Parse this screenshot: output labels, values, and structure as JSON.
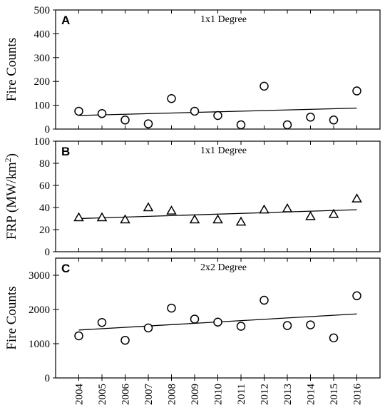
{
  "chart_data": [
    {
      "type": "scatter",
      "letter": "A",
      "title": "1x1 Degree",
      "ylabel": "Fire Counts",
      "ylim": [
        0,
        500
      ],
      "yticks": [
        0,
        100,
        200,
        300,
        400,
        500
      ],
      "marker": "circle",
      "x": [
        2004,
        2005,
        2006,
        2007,
        2008,
        2009,
        2010,
        2011,
        2012,
        2013,
        2014,
        2015,
        2016
      ],
      "values": [
        75,
        65,
        38,
        22,
        128,
        75,
        57,
        18,
        180,
        18,
        50,
        38,
        160
      ],
      "trend": {
        "x": [
          2004,
          2016
        ],
        "y": [
          57,
          88
        ]
      }
    },
    {
      "type": "scatter",
      "letter": "B",
      "title": "1x1 Degree",
      "ylabel": "FRP (MW/km",
      "ylabel_sup": "2",
      "ylabel_end": ")",
      "ylim": [
        0,
        100
      ],
      "yticks": [
        0,
        20,
        40,
        60,
        80,
        100
      ],
      "marker": "triangle",
      "x": [
        2004,
        2005,
        2006,
        2007,
        2008,
        2009,
        2010,
        2011,
        2012,
        2013,
        2014,
        2015,
        2016
      ],
      "values": [
        31,
        31,
        29,
        40,
        37,
        29,
        29,
        27,
        38,
        39,
        32,
        34,
        48
      ],
      "trend": {
        "x": [
          2004,
          2016
        ],
        "y": [
          30,
          38
        ]
      }
    },
    {
      "type": "scatter",
      "letter": "C",
      "title": "2x2 Degree",
      "ylabel": "Fire Counts",
      "ylim": [
        0,
        3500
      ],
      "yticks": [
        0,
        1000,
        2000,
        3000
      ],
      "marker": "circle",
      "x": [
        2004,
        2005,
        2006,
        2007,
        2008,
        2009,
        2010,
        2011,
        2012,
        2013,
        2014,
        2015,
        2016
      ],
      "values": [
        1230,
        1620,
        1100,
        1460,
        2040,
        1720,
        1630,
        1510,
        2270,
        1530,
        1550,
        1170,
        2400
      ],
      "trend": {
        "x": [
          2004,
          2016
        ],
        "y": [
          1400,
          1870
        ]
      }
    }
  ],
  "xticks": [
    "2004",
    "2005",
    "2006",
    "2007",
    "2008",
    "2009",
    "2010",
    "2011",
    "2012",
    "2013",
    "2014",
    "2015",
    "2016"
  ],
  "xlim": [
    2003,
    2017
  ]
}
